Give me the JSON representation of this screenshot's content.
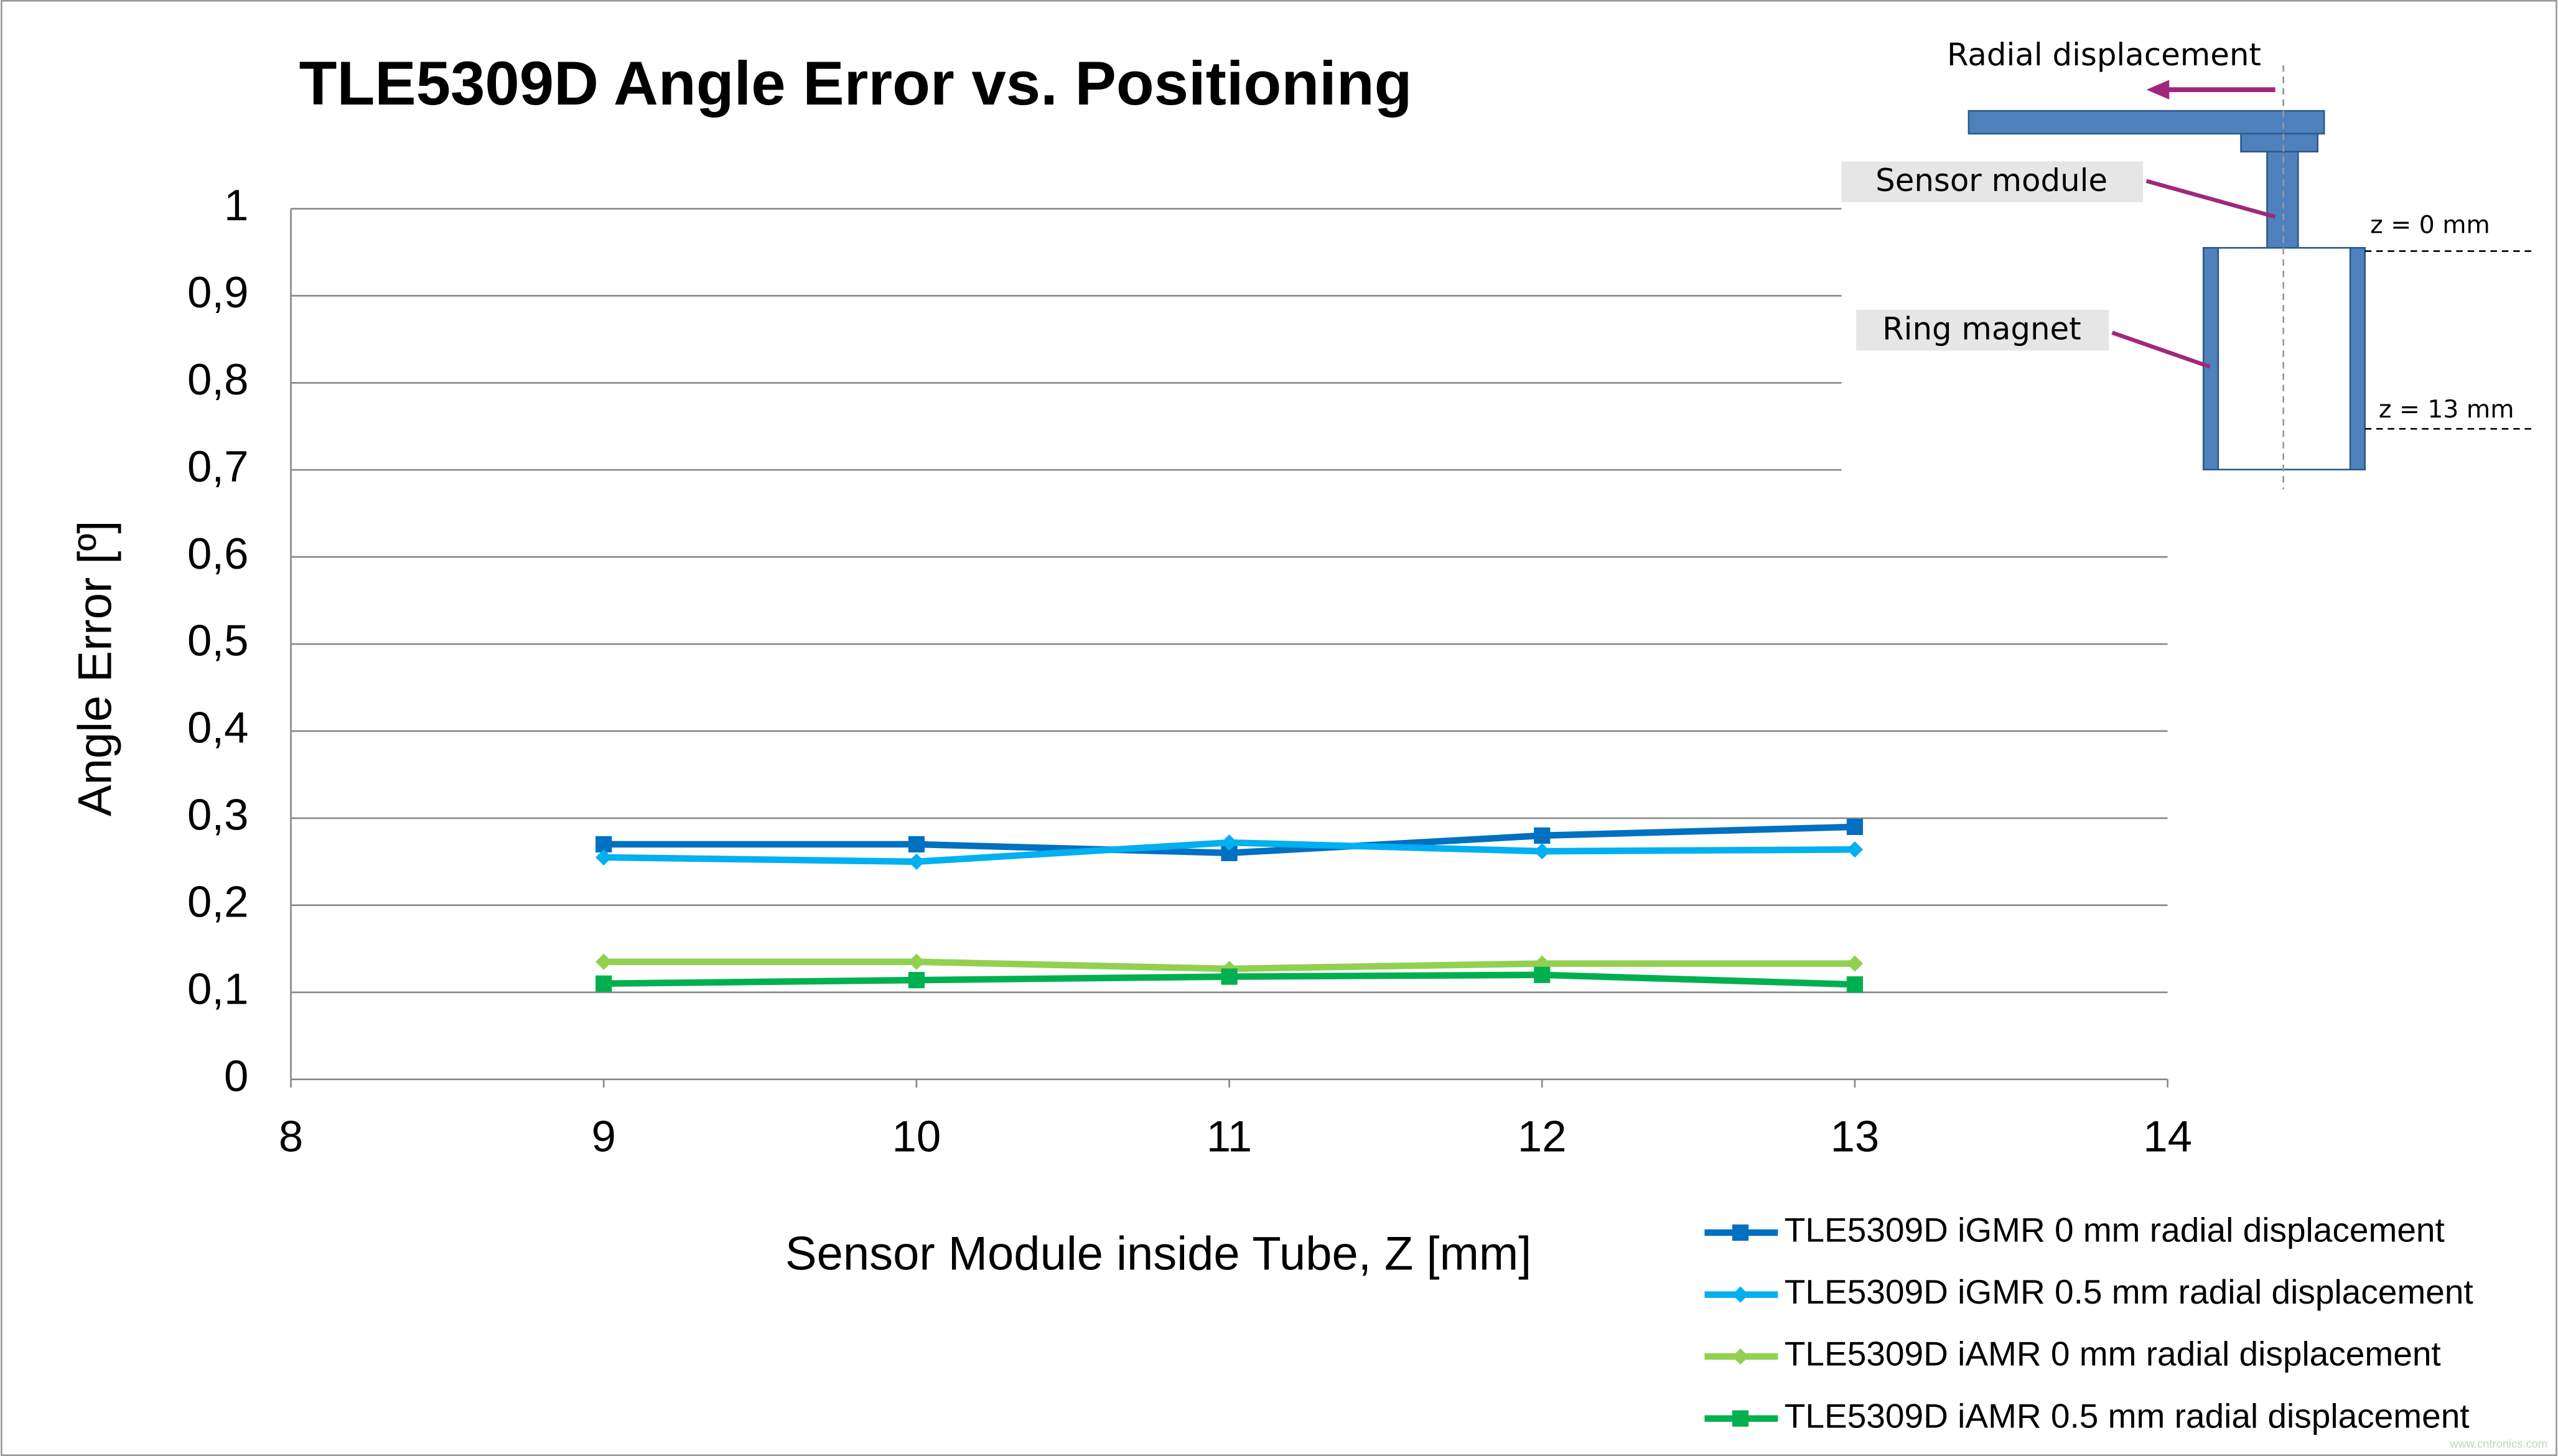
{
  "chart_data": {
    "type": "line",
    "title": "TLE5309D Angle Error vs. Positioning",
    "xlabel": "Sensor Module inside Tube, Z [mm]",
    "ylabel": "Angle Error [º]",
    "x": [
      9,
      10,
      11,
      12,
      13
    ],
    "xlim": [
      8,
      14
    ],
    "xticks": [
      8,
      9,
      10,
      11,
      12,
      13,
      14
    ],
    "ylim": [
      0,
      1
    ],
    "yticks": [
      0,
      {
        "value": 0.1,
        "label": "0,1"
      },
      {
        "value": 0.2,
        "label": "0,2"
      },
      {
        "value": 0.3,
        "label": "0,3"
      },
      {
        "value": 0.4,
        "label": "0,4"
      },
      {
        "value": 0.5,
        "label": "0,5"
      },
      {
        "value": 0.6,
        "label": "0,6"
      },
      {
        "value": 0.7,
        "label": "0,7"
      },
      {
        "value": 0.8,
        "label": "0,8"
      },
      {
        "value": 0.9,
        "label": "0,9"
      },
      1
    ],
    "grid": true,
    "legend": "bottom-right",
    "series": [
      {
        "name": "TLE5309D iGMR 0 mm radial displacement",
        "color": "#0070c0",
        "marker": "square",
        "values": [
          0.27,
          0.27,
          0.26,
          0.28,
          0.29
        ]
      },
      {
        "name": "TLE5309D iGMR 0.5 mm radial displacement",
        "color": "#00b0f0",
        "marker": "diamond",
        "values": [
          0.255,
          0.25,
          0.272,
          0.262,
          0.264
        ]
      },
      {
        "name": "TLE5309D iAMR 0 mm radial displacement",
        "color": "#92d050",
        "marker": "diamond",
        "values": [
          0.135,
          0.135,
          0.127,
          0.133,
          0.133
        ]
      },
      {
        "name": "TLE5309D iAMR 0.5 mm radial displacement",
        "color": "#00b050",
        "marker": "square",
        "values": [
          0.11,
          0.114,
          0.118,
          0.12,
          0.109
        ]
      }
    ]
  },
  "diagram": {
    "radial": "Radial displacement",
    "sensor": "Sensor module",
    "magnet": "Ring magnet",
    "z0": "z = 0 mm",
    "z13": "z = 13 mm",
    "watermark": "www.cntronics.com"
  }
}
